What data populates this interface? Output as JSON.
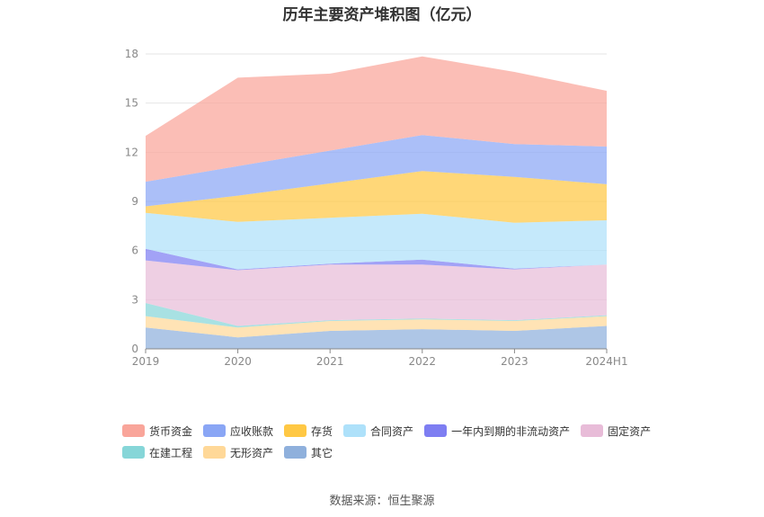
{
  "title": "历年主要资产堆积图（亿元）",
  "source": "数据来源：恒生聚源",
  "chart_data": {
    "type": "area",
    "stacked": true,
    "categories": [
      "2019",
      "2020",
      "2021",
      "2022",
      "2023",
      "2024H1"
    ],
    "yticks": [
      0,
      3,
      6,
      9,
      12,
      15,
      18
    ],
    "ylim": [
      0,
      18
    ],
    "grid": true,
    "legend_position": "bottom",
    "series": [
      {
        "name": "其它",
        "color": "#8fb0dc",
        "values": [
          1.3,
          0.7,
          1.1,
          1.2,
          1.1,
          1.4
        ]
      },
      {
        "name": "无形资产",
        "color": "#ffd898",
        "values": [
          0.7,
          0.6,
          0.6,
          0.6,
          0.6,
          0.6
        ]
      },
      {
        "name": "在建工程",
        "color": "#86d6d8",
        "values": [
          0.8,
          0.1,
          0.05,
          0.05,
          0.05,
          0.05
        ]
      },
      {
        "name": "固定资产",
        "color": "#e8bcd8",
        "values": [
          2.6,
          3.4,
          3.4,
          3.3,
          3.1,
          3.1
        ]
      },
      {
        "name": "一年内到期的非流动资产",
        "color": "#7e7ef2",
        "values": [
          0.7,
          0.05,
          0.05,
          0.3,
          0.05,
          0.0
        ]
      },
      {
        "name": "合同资产",
        "color": "#aee1fa",
        "values": [
          2.2,
          2.9,
          2.8,
          2.8,
          2.8,
          2.7
        ]
      },
      {
        "name": "存货",
        "color": "#ffc844",
        "values": [
          0.4,
          1.6,
          2.1,
          2.6,
          2.8,
          2.2
        ]
      },
      {
        "name": "应收账款",
        "color": "#8aa6f5",
        "values": [
          1.5,
          1.8,
          2.0,
          2.2,
          2.0,
          2.3
        ]
      },
      {
        "name": "货币资金",
        "color": "#f9a59a",
        "values": [
          2.8,
          5.4,
          4.7,
          4.8,
          4.4,
          3.4
        ]
      }
    ],
    "legend_order": [
      "货币资金",
      "应收账款",
      "存货",
      "合同资产",
      "一年内到期的非流动资产",
      "固定资产",
      "在建工程",
      "无形资产",
      "其它"
    ]
  }
}
